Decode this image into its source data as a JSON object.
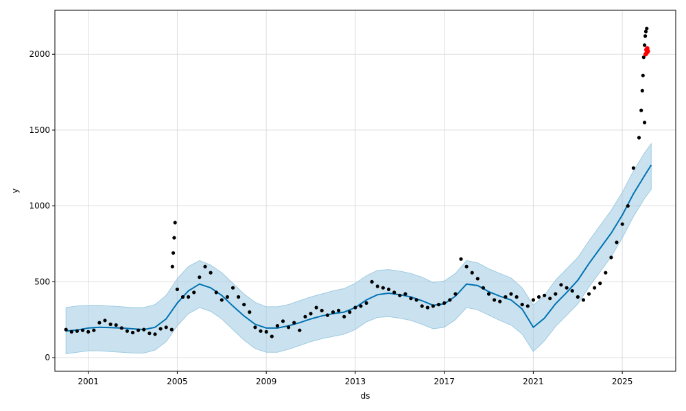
{
  "chart_data": {
    "type": "line",
    "xlabel": "ds",
    "ylabel": "y",
    "xlim": [
      1999.5,
      2027.4
    ],
    "ylim": [
      -90,
      2290
    ],
    "grid": true,
    "x_ticks": [
      2001,
      2005,
      2009,
      2013,
      2017,
      2021,
      2025
    ],
    "x_tick_labels": [
      "2001",
      "2005",
      "2009",
      "2013",
      "2017",
      "2021",
      "2025"
    ],
    "y_ticks": [
      0,
      500,
      1000,
      1500,
      2000
    ],
    "y_tick_labels": [
      "0",
      "500",
      "1000",
      "1500",
      "2000"
    ],
    "colors": {
      "observed": "#000000",
      "forecast": "#0072b2",
      "interval": "#9ecae1",
      "highlight": "#ff0000",
      "grid": "#dddddd"
    },
    "series": [
      {
        "kind": "forecast",
        "x": [
          2000.0,
          2000.5,
          2001.0,
          2001.5,
          2002.0,
          2002.5,
          2003.0,
          2003.5,
          2004.0,
          2004.5,
          2005.0,
          2005.5,
          2006.0,
          2006.5,
          2007.0,
          2007.5,
          2008.0,
          2008.5,
          2009.0,
          2009.5,
          2010.0,
          2010.5,
          2011.0,
          2011.5,
          2012.0,
          2012.5,
          2013.0,
          2013.5,
          2014.0,
          2014.5,
          2015.0,
          2015.5,
          2016.0,
          2016.5,
          2017.0,
          2017.5,
          2018.0,
          2018.5,
          2019.0,
          2019.5,
          2020.0,
          2020.5,
          2021.0,
          2021.5,
          2022.0,
          2022.5,
          2023.0,
          2023.5,
          2024.0,
          2024.5,
          2025.0,
          2025.5,
          2026.0,
          2026.3
        ],
        "y": [
          175,
          182,
          195,
          200,
          198,
          195,
          190,
          185,
          200,
          255,
          360,
          440,
          485,
          460,
          410,
          340,
          275,
          220,
          195,
          195,
          210,
          230,
          255,
          275,
          290,
          300,
          330,
          380,
          415,
          425,
          415,
          400,
          375,
          345,
          355,
          405,
          485,
          475,
          435,
          405,
          380,
          320,
          200,
          260,
          355,
          430,
          510,
          620,
          720,
          820,
          940,
          1080,
          1200,
          1270
        ]
      },
      {
        "kind": "interval_upper",
        "x": [
          2000.0,
          2000.5,
          2001.0,
          2001.5,
          2002.0,
          2002.5,
          2003.0,
          2003.5,
          2004.0,
          2004.5,
          2005.0,
          2005.5,
          2006.0,
          2006.5,
          2007.0,
          2007.5,
          2008.0,
          2008.5,
          2009.0,
          2009.5,
          2010.0,
          2010.5,
          2011.0,
          2011.5,
          2012.0,
          2012.5,
          2013.0,
          2013.5,
          2014.0,
          2014.5,
          2015.0,
          2015.5,
          2016.0,
          2016.5,
          2017.0,
          2017.5,
          2018.0,
          2018.5,
          2019.0,
          2019.5,
          2020.0,
          2020.5,
          2021.0,
          2021.5,
          2022.0,
          2022.5,
          2023.0,
          2023.5,
          2024.0,
          2024.5,
          2025.0,
          2025.5,
          2026.0,
          2026.3
        ],
        "y": [
          330,
          340,
          345,
          345,
          340,
          335,
          330,
          330,
          350,
          410,
          520,
          600,
          640,
          610,
          560,
          490,
          420,
          365,
          335,
          335,
          350,
          375,
          400,
          420,
          440,
          455,
          490,
          540,
          575,
          580,
          570,
          555,
          530,
          495,
          505,
          555,
          640,
          625,
          585,
          555,
          525,
          460,
          345,
          410,
          510,
          585,
          660,
          770,
          870,
          970,
          1090,
          1230,
          1350,
          1410
        ]
      },
      {
        "kind": "interval_lower",
        "x": [
          2000.0,
          2000.5,
          2001.0,
          2001.5,
          2002.0,
          2002.5,
          2003.0,
          2003.5,
          2004.0,
          2004.5,
          2005.0,
          2005.5,
          2006.0,
          2006.5,
          2007.0,
          2007.5,
          2008.0,
          2008.5,
          2009.0,
          2009.5,
          2010.0,
          2010.5,
          2011.0,
          2011.5,
          2012.0,
          2012.5,
          2013.0,
          2013.5,
          2014.0,
          2014.5,
          2015.0,
          2015.5,
          2016.0,
          2016.5,
          2017.0,
          2017.5,
          2018.0,
          2018.5,
          2019.0,
          2019.5,
          2020.0,
          2020.5,
          2021.0,
          2021.5,
          2022.0,
          2022.5,
          2023.0,
          2023.5,
          2024.0,
          2024.5,
          2025.0,
          2025.5,
          2026.0,
          2026.3
        ],
        "y": [
          25,
          35,
          45,
          45,
          40,
          35,
          30,
          30,
          50,
          105,
          210,
          290,
          330,
          305,
          255,
          185,
          115,
          60,
          35,
          35,
          55,
          80,
          105,
          125,
          140,
          155,
          185,
          235,
          265,
          270,
          260,
          245,
          220,
          190,
          200,
          250,
          330,
          315,
          280,
          245,
          215,
          155,
          40,
          110,
          205,
          280,
          355,
          465,
          565,
          665,
          790,
          930,
          1050,
          1110
        ]
      },
      {
        "kind": "observed",
        "x": [
          2000.0,
          2000.25,
          2000.5,
          2000.75,
          2001.0,
          2001.25,
          2001.5,
          2001.75,
          2002.0,
          2002.25,
          2002.5,
          2002.75,
          2003.0,
          2003.25,
          2003.5,
          2003.75,
          2004.0,
          2004.25,
          2004.5,
          2004.75,
          2005.0,
          2005.25,
          2005.5,
          2005.75,
          2006.0,
          2006.25,
          2006.5,
          2006.75,
          2007.0,
          2007.25,
          2007.5,
          2007.75,
          2008.0,
          2008.25,
          2008.5,
          2008.75,
          2009.0,
          2009.25,
          2009.5,
          2009.75,
          2010.0,
          2010.25,
          2010.5,
          2010.75,
          2011.0,
          2011.25,
          2011.5,
          2011.75,
          2012.0,
          2012.25,
          2012.5,
          2012.75,
          2013.0,
          2013.25,
          2013.5,
          2013.75,
          2014.0,
          2014.25,
          2014.5,
          2014.75,
          2015.0,
          2015.25,
          2015.5,
          2015.75,
          2016.0,
          2016.25,
          2016.5,
          2016.75,
          2017.0,
          2017.25,
          2017.5,
          2017.75,
          2018.0,
          2018.25,
          2018.5,
          2018.75,
          2019.0,
          2019.25,
          2019.5,
          2019.75,
          2020.0,
          2020.25,
          2020.5,
          2020.75,
          2021.0,
          2021.25,
          2021.5,
          2021.75,
          2022.0,
          2022.25,
          2022.5,
          2022.75,
          2023.0,
          2023.25,
          2023.5,
          2023.75,
          2024.0,
          2024.25,
          2024.5,
          2024.75,
          2025.0,
          2025.25,
          2025.5,
          2025.75,
          2026.0
        ],
        "y": [
          185,
          170,
          175,
          180,
          170,
          180,
          230,
          245,
          220,
          215,
          195,
          175,
          165,
          180,
          185,
          160,
          155,
          190,
          200,
          185,
          450,
          400,
          400,
          430,
          530,
          600,
          560,
          430,
          380,
          400,
          460,
          400,
          350,
          300,
          200,
          175,
          170,
          140,
          210,
          240,
          200,
          230,
          180,
          270,
          290,
          330,
          310,
          280,
          300,
          310,
          270,
          300,
          330,
          340,
          360,
          500,
          470,
          460,
          450,
          430,
          410,
          420,
          390,
          380,
          340,
          330,
          340,
          350,
          360,
          380,
          420,
          650,
          600,
          560,
          520,
          460,
          420,
          380,
          370,
          400,
          420,
          400,
          350,
          340,
          380,
          400,
          410,
          390,
          420,
          480,
          460,
          440,
          400,
          380,
          420,
          460,
          490,
          560,
          660,
          760,
          880,
          1000,
          1250,
          1450,
          1550
        ]
      },
      {
        "kind": "observed_spike_2004",
        "x": [
          2004.78,
          2004.82,
          2004.86,
          2004.9
        ],
        "y": [
          600,
          690,
          790,
          890
        ]
      },
      {
        "kind": "observed_spike_2026",
        "x": [
          2025.85,
          2025.9,
          2025.93,
          2025.96,
          2026.0,
          2026.03,
          2026.06,
          2026.1
        ],
        "y": [
          1630,
          1760,
          1860,
          1980,
          2060,
          2120,
          2150,
          2170
        ]
      },
      {
        "kind": "highlight",
        "x": [
          2026.05,
          2026.08,
          2026.1,
          2026.12,
          2026.15
        ],
        "y": [
          2000,
          2030,
          2010,
          2040,
          2020
        ]
      }
    ]
  }
}
